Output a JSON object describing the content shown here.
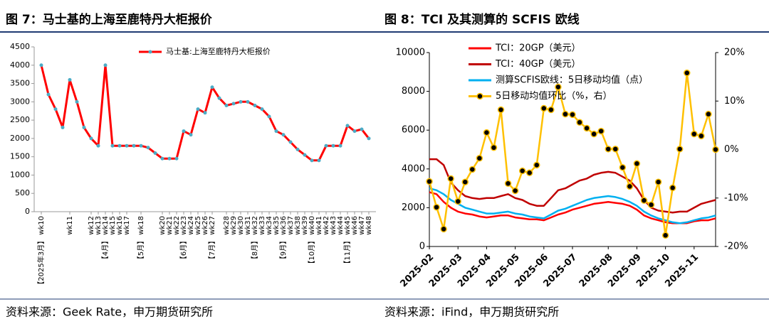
{
  "chart_data": [
    {
      "type": "line",
      "title": "图 7：马士基的上海至鹿特丹大柜报价",
      "source": "资料来源：Geek Rate，申万期货研究所",
      "categories": [
        "【2025年3月】 wk10",
        null,
        null,
        null,
        "wk11",
        null,
        null,
        "wk12",
        "wk13",
        "【4月】 wk14",
        "wk15",
        "wk16",
        "wk17",
        null,
        "【5月】 wk18",
        null,
        null,
        "wk20",
        "wk21",
        "wk22",
        "【6月】 wk23",
        "wk24",
        "wk25",
        "wk26",
        "【7月】 wk27",
        null,
        "wk28",
        "wk29",
        "wk30",
        "wk31",
        "【8月】 wk32",
        "wk33",
        "wk34",
        "wk35",
        "【9月】 wk36",
        "wk37",
        "wk38",
        "wk39",
        "【10月】 wk40",
        "wk41",
        "wk42",
        "wk43",
        "wk44",
        "【11月】 wk45",
        "wk46",
        "wk47",
        "wk48"
      ],
      "series": [
        {
          "name": "马士基:上海至鹿特丹大柜报价",
          "color": "#ff0000",
          "marker_color": "#4bacc6",
          "values": [
            4000,
            3200,
            2800,
            2300,
            3600,
            3000,
            2300,
            2000,
            1800,
            4000,
            1800,
            1800,
            1800,
            1800,
            1800,
            1750,
            1600,
            1450,
            1450,
            1450,
            2200,
            2100,
            2800,
            2700,
            3400,
            3100,
            2900,
            2950,
            3000,
            3000,
            2900,
            2800,
            2600,
            2200,
            2100,
            1900,
            1700,
            1550,
            1400,
            1400,
            1800,
            1800,
            1800,
            2350,
            2200,
            2250,
            2000
          ]
        }
      ],
      "ylim": [
        0,
        4500
      ],
      "yticks": [
        0,
        500,
        1000,
        1500,
        2000,
        2500,
        3000,
        3500,
        4000,
        4500
      ],
      "xtick_rotation": -90,
      "legend": "top",
      "grid": false
    },
    {
      "type": "line",
      "title": "图 8：TCI 及其测算的 SCFIS 欧线",
      "source": "资料来源：iFind，申万期货研究所",
      "categories": [
        "2025-02",
        null,
        null,
        null,
        "2025-03",
        null,
        null,
        null,
        "2025-04",
        null,
        null,
        null,
        "2025-05",
        null,
        null,
        null,
        "2025-06",
        null,
        null,
        null,
        "2025-07",
        null,
        null,
        null,
        null,
        "2025-08",
        null,
        null,
        null,
        "2025-09",
        null,
        null,
        null,
        "2025-10",
        null,
        null,
        null,
        "2025-11",
        null,
        null,
        null
      ],
      "series": [
        {
          "name": "TCI：20GP（美元）",
          "color": "#ff0000",
          "values": [
            2800,
            2700,
            2300,
            2000,
            1800,
            1700,
            1650,
            1550,
            1500,
            1550,
            1600,
            1600,
            1500,
            1450,
            1400,
            1400,
            1350,
            1500,
            1650,
            1750,
            1900,
            2000,
            2100,
            2200,
            2250,
            2300,
            2250,
            2200,
            2100,
            1900,
            1600,
            1450,
            1350,
            1250,
            1200,
            1200,
            1200,
            1300,
            1350,
            1350,
            1450
          ]
        },
        {
          "name": "TCI：40GP（美元）",
          "color": "#c00000",
          "values": [
            4500,
            4500,
            4200,
            3300,
            2900,
            2600,
            2500,
            2450,
            2500,
            2500,
            2600,
            2700,
            2500,
            2400,
            2200,
            2100,
            2100,
            2500,
            2900,
            3000,
            3200,
            3400,
            3500,
            3700,
            3800,
            3850,
            3800,
            3600,
            3400,
            3000,
            2400,
            2000,
            1850,
            1800,
            1750,
            1800,
            1800,
            2000,
            2200,
            2300,
            2400
          ]
        },
        {
          "name": "测算SCFIS欧线：5日移动均值（点）",
          "color": "#00b0f0",
          "values": [
            3000,
            2900,
            2700,
            2400,
            2200,
            2000,
            1900,
            1800,
            1700,
            1700,
            1750,
            1800,
            1700,
            1650,
            1550,
            1500,
            1450,
            1650,
            1850,
            1950,
            2100,
            2250,
            2400,
            2500,
            2550,
            2600,
            2550,
            2450,
            2300,
            2100,
            1800,
            1600,
            1450,
            1350,
            1250,
            1200,
            1250,
            1350,
            1450,
            1500,
            1600
          ]
        },
        {
          "name": "5日移动均值环比（%，右）",
          "color": "#ffc000",
          "marker_color": "#000000",
          "axis": "y2",
          "values": [
            -6.6,
            -11.9,
            -16.4,
            -6.0,
            -10.7,
            -6.7,
            -4.1,
            -1.8,
            3.5,
            0.4,
            8.2,
            -7.0,
            -8.5,
            -4.4,
            -4.8,
            -3.2,
            8.5,
            8.2,
            12.9,
            7.3,
            7.2,
            5.6,
            4.4,
            3.2,
            3.8,
            0.1,
            0.1,
            -3.7,
            -7.6,
            -2.9,
            -10.5,
            -11.4,
            -6.7,
            -17.7,
            -7.9,
            0.1,
            15.8,
            3.2,
            2.8,
            7.3,
            0.0
          ]
        }
      ],
      "ylim": [
        0,
        10000
      ],
      "yticks": [
        0,
        2000,
        4000,
        6000,
        8000,
        10000
      ],
      "y2lim": [
        -20,
        20
      ],
      "y2ticks": [
        {
          "value": -20,
          "label": "-20%"
        },
        {
          "value": -10,
          "label": "-10%"
        },
        {
          "value": 0,
          "label": "0%"
        },
        {
          "value": 10,
          "label": "10%"
        },
        {
          "value": 20,
          "label": "20%"
        }
      ],
      "xtick_rotation": -45,
      "legend": "upper left",
      "grid": false
    }
  ]
}
